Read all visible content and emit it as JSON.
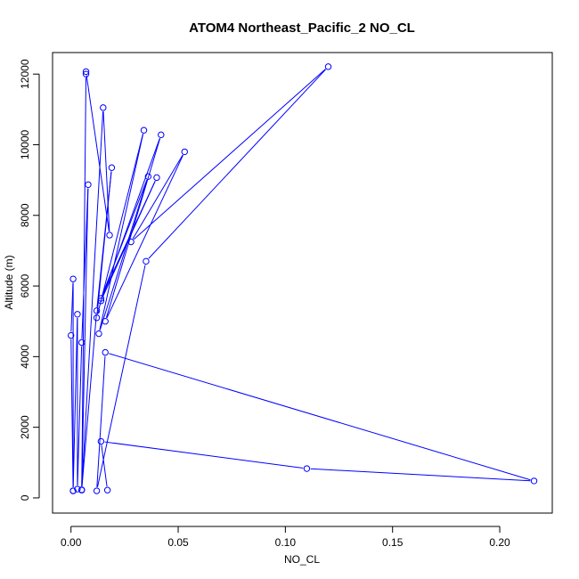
{
  "chart_data": {
    "type": "line",
    "title": "ATOM4 Northeast_Pacific_2 NO_CL",
    "xlabel": "NO_CL",
    "ylabel": "Altitude (m)",
    "xlim": [
      -0.0086,
      0.2245
    ],
    "ylim": [
      -430,
      12610
    ],
    "x_ticks": [
      0.0,
      0.05,
      0.1,
      0.15,
      0.2
    ],
    "x_tick_labels": [
      "0.00",
      "0.05",
      "0.10",
      "0.15",
      "0.20"
    ],
    "y_ticks": [
      0,
      2000,
      4000,
      6000,
      8000,
      10000,
      12000
    ],
    "y_tick_labels": [
      "0",
      "2000",
      "4000",
      "6000",
      "8000",
      "10000",
      "12000"
    ],
    "grid": false,
    "legend": "none",
    "series": [
      {
        "color": "#0000ff",
        "marker": "open-circle",
        "line": true,
        "points": [
          [
            0.001,
            200
          ],
          [
            0.0,
            4600
          ],
          [
            0.001,
            6200
          ],
          [
            0.001,
            200
          ],
          [
            0.003,
            5200
          ],
          [
            0.003,
            250
          ],
          [
            0.005,
            4400
          ],
          [
            0.008,
            8870
          ],
          [
            0.005,
            220
          ],
          [
            0.007,
            12000
          ],
          [
            0.007,
            12070
          ],
          [
            0.018,
            7440
          ],
          [
            0.015,
            11050
          ],
          [
            0.005,
            230
          ],
          [
            0.012,
            5300
          ],
          [
            0.019,
            9350
          ],
          [
            0.012,
            5100
          ],
          [
            0.034,
            10410
          ],
          [
            0.013,
            4650
          ],
          [
            0.036,
            9100
          ],
          [
            0.014,
            5650
          ],
          [
            0.04,
            9070
          ],
          [
            0.014,
            5580
          ],
          [
            0.042,
            10280
          ],
          [
            0.016,
            5000
          ],
          [
            0.053,
            9800
          ],
          [
            0.028,
            7250
          ],
          [
            0.12,
            12210
          ],
          [
            0.035,
            6700
          ],
          [
            0.012,
            200
          ],
          [
            0.016,
            4120
          ],
          [
            0.216,
            480
          ],
          [
            0.11,
            830
          ],
          [
            0.014,
            1600
          ],
          [
            0.017,
            220
          ]
        ]
      }
    ]
  }
}
